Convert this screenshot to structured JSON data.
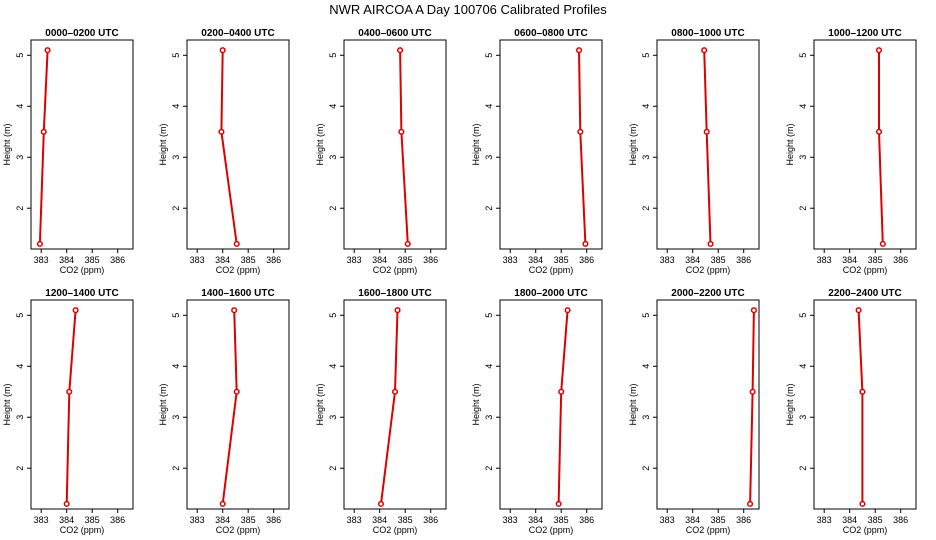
{
  "figure": {
    "title": "NWR AIRCOA A  Day 100706  Calibrated Profiles"
  },
  "chart_data": [
    {
      "type": "line",
      "title": "0000–0200 UTC",
      "xlabel": "CO2 (ppm)",
      "ylabel": "Height (m)",
      "xlim": [
        382.6,
        386.6
      ],
      "ylim": [
        1.2,
        5.3
      ],
      "xticks": [
        "383",
        "384",
        "385",
        "386"
      ],
      "yticks": [
        "2",
        "3",
        "4",
        "5"
      ],
      "points": [
        {
          "x": 382.95,
          "y": 1.3
        },
        {
          "x": 383.1,
          "y": 3.5
        },
        {
          "x": 383.25,
          "y": 5.1
        }
      ]
    },
    {
      "type": "line",
      "title": "0200–0400 UTC",
      "xlabel": "CO2 (ppm)",
      "ylabel": "Height (m)",
      "xlim": [
        382.6,
        386.6
      ],
      "ylim": [
        1.2,
        5.3
      ],
      "xticks": [
        "383",
        "384",
        "385",
        "386"
      ],
      "yticks": [
        "2",
        "3",
        "4",
        "5"
      ],
      "points": [
        {
          "x": 384.55,
          "y": 1.3
        },
        {
          "x": 383.95,
          "y": 3.5
        },
        {
          "x": 384.0,
          "y": 5.1
        }
      ]
    },
    {
      "type": "line",
      "title": "0400–0600 UTC",
      "xlabel": "CO2 (ppm)",
      "ylabel": "Height (m)",
      "xlim": [
        382.6,
        386.6
      ],
      "ylim": [
        1.2,
        5.3
      ],
      "xticks": [
        "383",
        "384",
        "385",
        "386"
      ],
      "yticks": [
        "2",
        "3",
        "4",
        "5"
      ],
      "points": [
        {
          "x": 385.1,
          "y": 1.3
        },
        {
          "x": 384.85,
          "y": 3.5
        },
        {
          "x": 384.8,
          "y": 5.1
        }
      ]
    },
    {
      "type": "line",
      "title": "0600–0800 UTC",
      "xlabel": "CO2 (ppm)",
      "ylabel": "Height (m)",
      "xlim": [
        382.6,
        386.6
      ],
      "ylim": [
        1.2,
        5.3
      ],
      "xticks": [
        "383",
        "384",
        "385",
        "386"
      ],
      "yticks": [
        "2",
        "3",
        "4",
        "5"
      ],
      "points": [
        {
          "x": 385.95,
          "y": 1.3
        },
        {
          "x": 385.75,
          "y": 3.5
        },
        {
          "x": 385.7,
          "y": 5.1
        }
      ]
    },
    {
      "type": "line",
      "title": "0800–1000 UTC",
      "xlabel": "CO2 (ppm)",
      "ylabel": "Height (m)",
      "xlim": [
        382.6,
        386.6
      ],
      "ylim": [
        1.2,
        5.3
      ],
      "xticks": [
        "383",
        "384",
        "385",
        "386"
      ],
      "yticks": [
        "2",
        "3",
        "4",
        "5"
      ],
      "points": [
        {
          "x": 384.7,
          "y": 1.3
        },
        {
          "x": 384.55,
          "y": 3.5
        },
        {
          "x": 384.45,
          "y": 5.1
        }
      ]
    },
    {
      "type": "line",
      "title": "1000–1200 UTC",
      "xlabel": "CO2 (ppm)",
      "ylabel": "Height (m)",
      "xlim": [
        382.6,
        386.6
      ],
      "ylim": [
        1.2,
        5.3
      ],
      "xticks": [
        "383",
        "384",
        "385",
        "386"
      ],
      "yticks": [
        "2",
        "3",
        "4",
        "5"
      ],
      "points": [
        {
          "x": 385.3,
          "y": 1.3
        },
        {
          "x": 385.15,
          "y": 3.5
        },
        {
          "x": 385.15,
          "y": 5.1
        }
      ]
    },
    {
      "type": "line",
      "title": "1200–1400 UTC",
      "xlabel": "CO2 (ppm)",
      "ylabel": "Height (m)",
      "xlim": [
        382.6,
        386.6
      ],
      "ylim": [
        1.2,
        5.3
      ],
      "xticks": [
        "383",
        "384",
        "385",
        "386"
      ],
      "yticks": [
        "2",
        "3",
        "4",
        "5"
      ],
      "points": [
        {
          "x": 384.0,
          "y": 1.3
        },
        {
          "x": 384.1,
          "y": 3.5
        },
        {
          "x": 384.35,
          "y": 5.1
        }
      ]
    },
    {
      "type": "line",
      "title": "1400–1600 UTC",
      "xlabel": "CO2 (ppm)",
      "ylabel": "Height (m)",
      "xlim": [
        382.6,
        386.6
      ],
      "ylim": [
        1.2,
        5.3
      ],
      "xticks": [
        "383",
        "384",
        "385",
        "386"
      ],
      "yticks": [
        "2",
        "3",
        "4",
        "5"
      ],
      "points": [
        {
          "x": 384.0,
          "y": 1.3
        },
        {
          "x": 384.55,
          "y": 3.5
        },
        {
          "x": 384.45,
          "y": 5.1
        }
      ]
    },
    {
      "type": "line",
      "title": "1600–1800 UTC",
      "xlabel": "CO2 (ppm)",
      "ylabel": "Height (m)",
      "xlim": [
        382.6,
        386.6
      ],
      "ylim": [
        1.2,
        5.3
      ],
      "xticks": [
        "383",
        "384",
        "385",
        "386"
      ],
      "yticks": [
        "2",
        "3",
        "4",
        "5"
      ],
      "points": [
        {
          "x": 384.05,
          "y": 1.3
        },
        {
          "x": 384.6,
          "y": 3.5
        },
        {
          "x": 384.7,
          "y": 5.1
        }
      ]
    },
    {
      "type": "line",
      "title": "1800–2000 UTC",
      "xlabel": "CO2 (ppm)",
      "ylabel": "Height (m)",
      "xlim": [
        382.6,
        386.6
      ],
      "ylim": [
        1.2,
        5.3
      ],
      "xticks": [
        "383",
        "384",
        "385",
        "386"
      ],
      "yticks": [
        "2",
        "3",
        "4",
        "5"
      ],
      "points": [
        {
          "x": 384.9,
          "y": 1.3
        },
        {
          "x": 385.0,
          "y": 3.5
        },
        {
          "x": 385.25,
          "y": 5.1
        }
      ]
    },
    {
      "type": "line",
      "title": "2000–2200 UTC",
      "xlabel": "CO2 (ppm)",
      "ylabel": "Height (m)",
      "xlim": [
        382.6,
        386.6
      ],
      "ylim": [
        1.2,
        5.3
      ],
      "xticks": [
        "383",
        "384",
        "385",
        "386"
      ],
      "yticks": [
        "2",
        "3",
        "4",
        "5"
      ],
      "points": [
        {
          "x": 386.25,
          "y": 1.3
        },
        {
          "x": 386.35,
          "y": 3.5
        },
        {
          "x": 386.4,
          "y": 5.1
        }
      ]
    },
    {
      "type": "line",
      "title": "2200–2400 UTC",
      "xlabel": "CO2 (ppm)",
      "ylabel": "Height (m)",
      "xlim": [
        382.6,
        386.6
      ],
      "ylim": [
        1.2,
        5.3
      ],
      "xticks": [
        "383",
        "384",
        "385",
        "386"
      ],
      "yticks": [
        "2",
        "3",
        "4",
        "5"
      ],
      "points": [
        {
          "x": 384.5,
          "y": 1.3
        },
        {
          "x": 384.5,
          "y": 3.5
        },
        {
          "x": 384.35,
          "y": 5.1
        }
      ]
    }
  ],
  "colors": {
    "series": "#dd0000",
    "background": "#ffffff",
    "axes": "#000000"
  }
}
